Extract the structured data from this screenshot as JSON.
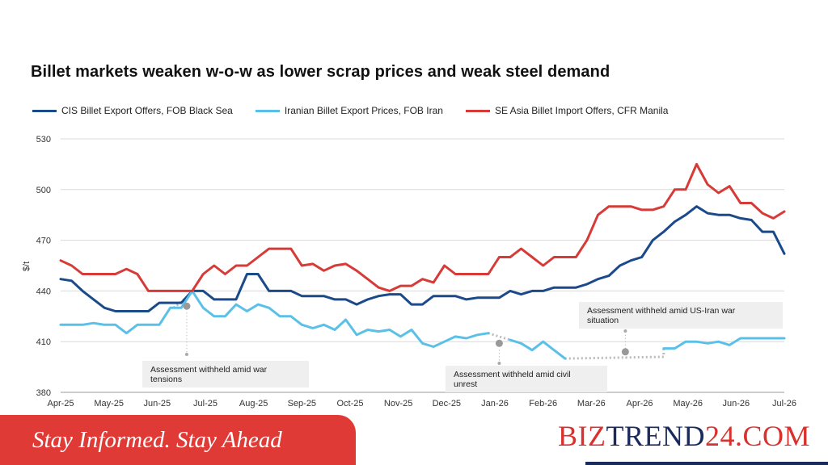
{
  "colors": {
    "cis": "#1a4a8a",
    "iran": "#5bc0e8",
    "sea": "#d63b37",
    "banner": "#e03a36",
    "brand_red": "#d9322e",
    "brand_navy": "#1b2a5c"
  },
  "banner": {
    "slogan": "Stay Informed. Stay Ahead"
  },
  "brand": {
    "part1": "BIZ",
    "part2": "TREND",
    "part3": "24.COM"
  },
  "chart_data": {
    "type": "line",
    "title": "Billet markets weaken w-o-w as lower scrap prices and weak steel demand",
    "ylabel": "$/t",
    "ylim": [
      380,
      530
    ],
    "yticks": [
      380,
      410,
      440,
      470,
      500,
      530
    ],
    "grid": true,
    "legend_position": "top-left",
    "x_ticks": [
      "Apr-25",
      "May-25",
      "Jun-25",
      "Jul-25",
      "Aug-25",
      "Sep-25",
      "Oct-25",
      "Nov-25",
      "Dec-25",
      "Jan-26",
      "Feb-26",
      "Mar-26",
      "Apr-26",
      "May-26",
      "Jun-26",
      "Jul-26"
    ],
    "series": [
      {
        "name": "CIS Billet Export Offers, FOB Black Sea",
        "color": "#1a4a8a",
        "values": [
          447,
          446,
          440,
          435,
          430,
          428,
          428,
          428,
          428,
          433,
          433,
          433,
          440,
          440,
          435,
          435,
          435,
          450,
          450,
          440,
          440,
          440,
          437,
          437,
          437,
          435,
          435,
          432,
          435,
          437,
          438,
          438,
          432,
          432,
          437,
          437,
          437,
          435,
          436,
          436,
          436,
          440,
          438,
          440,
          440,
          442,
          442,
          442,
          444,
          447,
          449,
          455,
          458,
          460,
          470,
          475,
          481,
          485,
          490,
          486,
          485,
          485,
          483,
          482,
          475,
          475,
          462
        ]
      },
      {
        "name": "Iranian Billet Export Prices, FOB Iran",
        "color": "#5bc0e8",
        "values": [
          420,
          420,
          420,
          421,
          420,
          420,
          415,
          420,
          420,
          420,
          430,
          430,
          440,
          430,
          425,
          425,
          432,
          428,
          432,
          430,
          425,
          425,
          420,
          418,
          420,
          417,
          423,
          414,
          417,
          416,
          417,
          413,
          417,
          409,
          407,
          410,
          413,
          412,
          414,
          415,
          null,
          411,
          409,
          405,
          410,
          405,
          400,
          null,
          null,
          null,
          null,
          null,
          null,
          null,
          null,
          406,
          406,
          410,
          410,
          409,
          410,
          408,
          412,
          412,
          412,
          412,
          412
        ]
      },
      {
        "name": "SE Asia Billet Import Offers, CFR Manila",
        "color": "#d63b37",
        "values": [
          458,
          455,
          450,
          450,
          450,
          450,
          453,
          450,
          440,
          440,
          440,
          440,
          440,
          450,
          455,
          450,
          455,
          455,
          460,
          465,
          465,
          465,
          455,
          456,
          452,
          455,
          456,
          452,
          447,
          442,
          440,
          443,
          443,
          447,
          445,
          455,
          450,
          450,
          450,
          450,
          460,
          460,
          465,
          460,
          455,
          460,
          460,
          460,
          470,
          485,
          490,
          490,
          490,
          488,
          488,
          490,
          500,
          500,
          515,
          503,
          498,
          502,
          492,
          492,
          486,
          483,
          487
        ]
      }
    ],
    "annotations": [
      {
        "text": [
          "Assessment withheld amid  war",
          "tensions"
        ],
        "at_index": 11.5,
        "y": 431
      },
      {
        "text": [
          "Assessment withheld amid civil",
          "unrest"
        ],
        "at_index": 40,
        "y": 409
      },
      {
        "text": [
          "Assessment withheld amid US-Iran war",
          "situation"
        ],
        "at_index": 51.5,
        "y": 404
      }
    ]
  }
}
